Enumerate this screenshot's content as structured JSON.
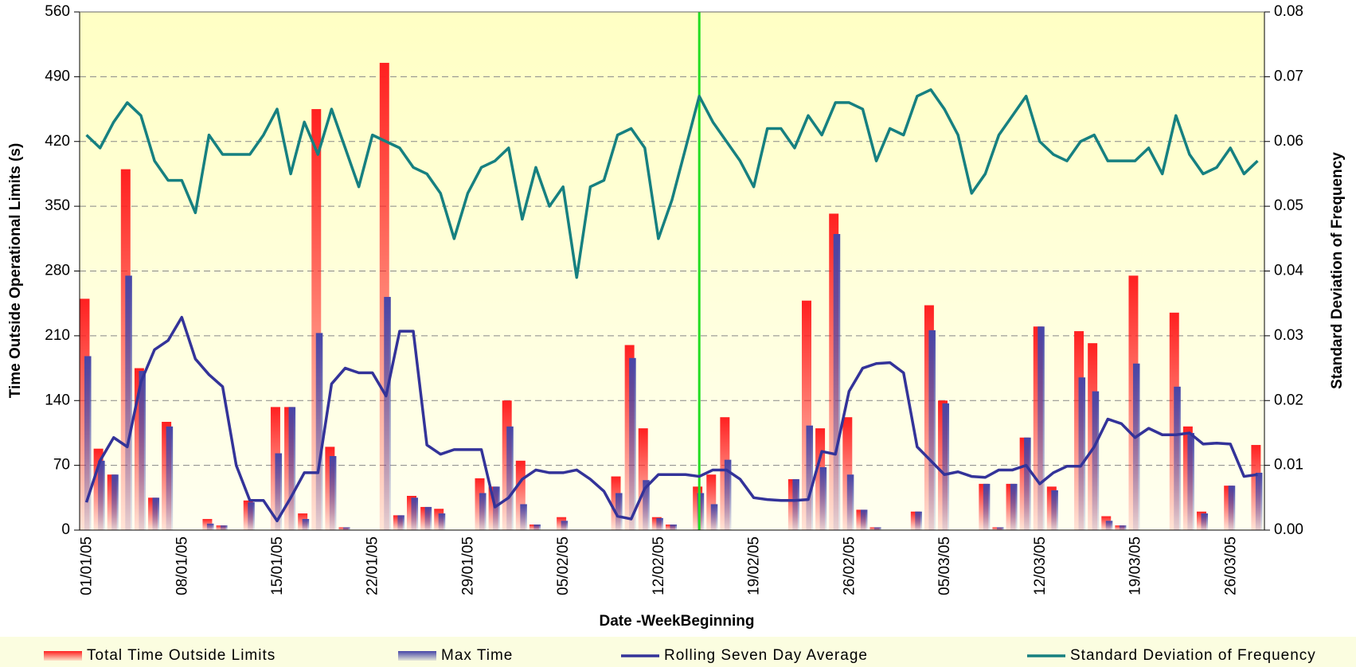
{
  "chart_data": {
    "type": "bar",
    "xlabel": "Date -WeekBeginning",
    "ylabel": "Time Outside Operational Limits (s)",
    "y2label": "Standard Deviation of Frequency",
    "categories": [
      "01/01/05",
      null,
      null,
      null,
      null,
      null,
      null,
      "08/01/05",
      null,
      null,
      null,
      null,
      null,
      null,
      "15/01/05",
      null,
      null,
      null,
      null,
      null,
      null,
      "22/01/05",
      null,
      null,
      null,
      null,
      null,
      null,
      "29/01/05",
      null,
      null,
      null,
      null,
      null,
      null,
      "05/02/05",
      null,
      null,
      null,
      null,
      null,
      null,
      "12/02/05",
      null,
      null,
      null,
      null,
      null,
      null,
      "19/02/05",
      null,
      null,
      null,
      null,
      null,
      null,
      "26/02/05",
      null,
      null,
      null,
      null,
      null,
      null,
      "05/03/05",
      null,
      null,
      null,
      null,
      null,
      null,
      "12/03/05",
      null,
      null,
      null,
      null,
      null,
      null,
      "19/03/05",
      null,
      null,
      null,
      null,
      null,
      null,
      "26/03/05",
      null,
      null
    ],
    "ylim": [
      0,
      560
    ],
    "yticks": [
      0,
      70,
      140,
      210,
      280,
      350,
      420,
      490,
      560
    ],
    "y2lim": [
      0,
      0.08
    ],
    "y2ticks": [
      {
        "value": 0,
        "label": "0.00"
      },
      0.01,
      0.02,
      0.03,
      0.04,
      0.05,
      0.06,
      0.07,
      0.08
    ],
    "grid": true,
    "legend": "bottom",
    "vline_category_index": 45,
    "vline_color": "#22dd22",
    "series": [
      {
        "name": "Total Time Outside Limits",
        "type": "bar",
        "color": "#ff2020",
        "values": [
          250,
          88,
          60,
          390,
          175,
          35,
          117,
          0,
          0,
          12,
          5,
          0,
          32,
          0,
          133,
          133,
          18,
          455,
          90,
          3,
          0,
          0,
          505,
          16,
          37,
          25,
          23,
          0,
          0,
          56,
          47,
          140,
          75,
          6,
          0,
          14,
          0,
          0,
          0,
          58,
          200,
          110,
          14,
          6,
          0,
          47,
          60,
          122,
          0,
          0,
          0,
          0,
          55,
          248,
          110,
          342,
          122,
          22,
          3,
          0,
          0,
          20,
          243,
          140,
          0,
          0,
          50,
          3,
          50,
          100,
          220,
          47,
          0,
          215,
          202,
          15,
          5,
          275,
          0,
          0,
          235,
          112,
          20,
          0,
          48,
          0,
          92
        ]
      },
      {
        "name": "Max Time",
        "type": "bar",
        "color": "#4646a8",
        "values": [
          188,
          75,
          60,
          275,
          172,
          35,
          112,
          0,
          0,
          7,
          5,
          0,
          30,
          0,
          83,
          133,
          12,
          213,
          80,
          3,
          0,
          0,
          252,
          16,
          35,
          25,
          18,
          0,
          0,
          40,
          47,
          112,
          28,
          6,
          0,
          10,
          0,
          0,
          0,
          40,
          186,
          54,
          13,
          6,
          0,
          40,
          28,
          76,
          0,
          0,
          0,
          0,
          55,
          113,
          68,
          320,
          60,
          22,
          3,
          0,
          0,
          20,
          216,
          137,
          0,
          0,
          50,
          3,
          50,
          100,
          220,
          43,
          0,
          165,
          150,
          10,
          5,
          180,
          0,
          0,
          155,
          105,
          18,
          0,
          48,
          0,
          62
        ]
      },
      {
        "name": "Rolling Seven Day Average",
        "type": "line",
        "color": "#333399",
        "values": [
          30,
          75,
          100,
          90,
          160,
          195,
          205,
          230,
          185,
          168,
          155,
          70,
          32,
          32,
          10,
          35,
          62,
          62,
          158,
          175,
          170,
          170,
          145,
          215,
          215,
          92,
          82,
          87,
          87,
          87,
          25,
          35,
          55,
          65,
          62,
          62,
          65,
          55,
          42,
          15,
          12,
          45,
          60,
          60,
          60,
          58,
          65,
          65,
          55,
          35,
          33,
          32,
          32,
          33,
          85,
          82,
          150,
          175,
          180,
          181,
          170,
          90,
          75,
          60,
          63,
          58,
          57,
          65,
          65,
          70,
          50,
          62,
          69,
          69,
          90,
          120,
          115,
          100,
          110,
          103,
          103,
          105,
          93,
          94,
          93,
          58,
          60
        ]
      },
      {
        "name": "Standard Deviation of Frequency",
        "type": "line",
        "axis": "y2",
        "color": "#168080",
        "values": [
          0.061,
          0.059,
          0.063,
          0.066,
          0.064,
          0.057,
          0.054,
          0.054,
          0.049,
          0.061,
          0.058,
          0.058,
          0.058,
          0.061,
          0.065,
          0.055,
          0.063,
          0.058,
          0.065,
          0.059,
          0.053,
          0.061,
          0.06,
          0.059,
          0.056,
          0.055,
          0.052,
          0.045,
          0.052,
          0.056,
          0.057,
          0.059,
          0.048,
          0.056,
          0.05,
          0.053,
          0.039,
          0.053,
          0.054,
          0.061,
          0.062,
          0.059,
          0.045,
          0.051,
          0.059,
          0.067,
          0.063,
          0.06,
          0.057,
          0.053,
          0.062,
          0.062,
          0.059,
          0.064,
          0.061,
          0.066,
          0.066,
          0.065,
          0.057,
          0.062,
          0.061,
          0.067,
          0.068,
          0.065,
          0.061,
          0.052,
          0.055,
          0.061,
          0.064,
          0.067,
          0.06,
          0.058,
          0.057,
          0.06,
          0.061,
          0.057,
          0.057,
          0.057,
          0.059,
          0.055,
          0.064,
          0.058,
          0.055,
          0.056,
          0.059,
          0.055,
          0.057
        ]
      }
    ]
  }
}
